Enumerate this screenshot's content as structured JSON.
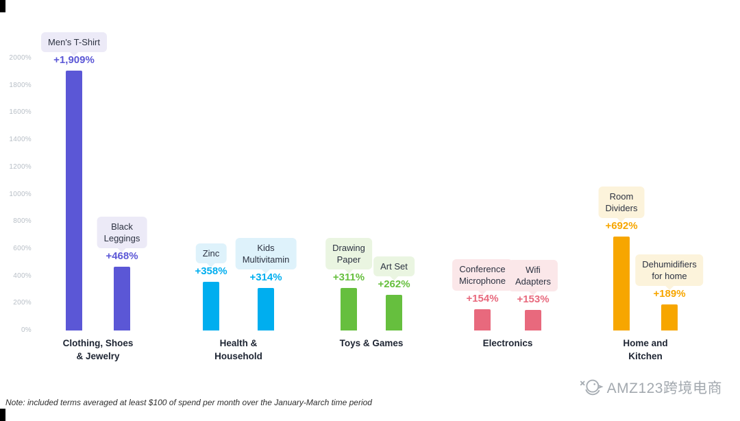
{
  "note": "Note: included terms averaged at least $100 of spend per month over the January-March time period",
  "watermark": "AMZ123跨境电商",
  "chart_data": {
    "type": "bar",
    "title": "",
    "xlabel": "",
    "ylabel": "",
    "ylim": [
      0,
      2000
    ],
    "ytick_step": 200,
    "ytick_suffix": "%",
    "grid": false,
    "legend": false,
    "groups": [
      {
        "category": "Clothing, Shoes\n& Jewelry",
        "color": "#5B57D6",
        "chip_bg": "#ECEAF7",
        "bars": [
          {
            "name": "Men's T-Shirt",
            "chip": "Men's T-Shirt",
            "value": 1909,
            "value_label": "+1,909%"
          },
          {
            "name": "Black Leggings",
            "chip": "Black\nLeggings",
            "value": 468,
            "value_label": "+468%"
          }
        ]
      },
      {
        "category": "Health &\nHousehold",
        "color": "#00AEEF",
        "chip_bg": "#DEF2FB",
        "bars": [
          {
            "name": "Zinc",
            "chip": "Zinc",
            "value": 358,
            "value_label": "+358%"
          },
          {
            "name": "Kids Multivitamin",
            "chip": "Kids\nMultivitamin",
            "value": 314,
            "value_label": "+314%"
          }
        ]
      },
      {
        "category": "Toys & Games",
        "color": "#66BF3E",
        "chip_bg": "#EAF5E1",
        "bars": [
          {
            "name": "Drawing Paper",
            "chip": "Drawing\nPaper",
            "value": 311,
            "value_label": "+311%"
          },
          {
            "name": "Art Set",
            "chip": "Art Set",
            "value": 262,
            "value_label": "+262%"
          }
        ]
      },
      {
        "category": "Electronics",
        "color": "#E8697D",
        "chip_bg": "#FBE7E9",
        "bars": [
          {
            "name": "Conference Microphone",
            "chip": "Conference\nMicrophone",
            "value": 154,
            "value_label": "+154%"
          },
          {
            "name": "Wifi Adapters",
            "chip": "Wifi\nAdapters",
            "value": 153,
            "value_label": "+153%"
          }
        ]
      },
      {
        "category": "Home and\nKitchen",
        "color": "#F7A600",
        "chip_bg": "#FCF3DB",
        "bars": [
          {
            "name": "Room Dividers",
            "chip": "Room\nDividers",
            "value": 692,
            "value_label": "+692%"
          },
          {
            "name": "Dehumidifiers for home",
            "chip": "Dehumidifiers\nfor home",
            "value": 189,
            "value_label": "+189%"
          }
        ]
      }
    ]
  }
}
